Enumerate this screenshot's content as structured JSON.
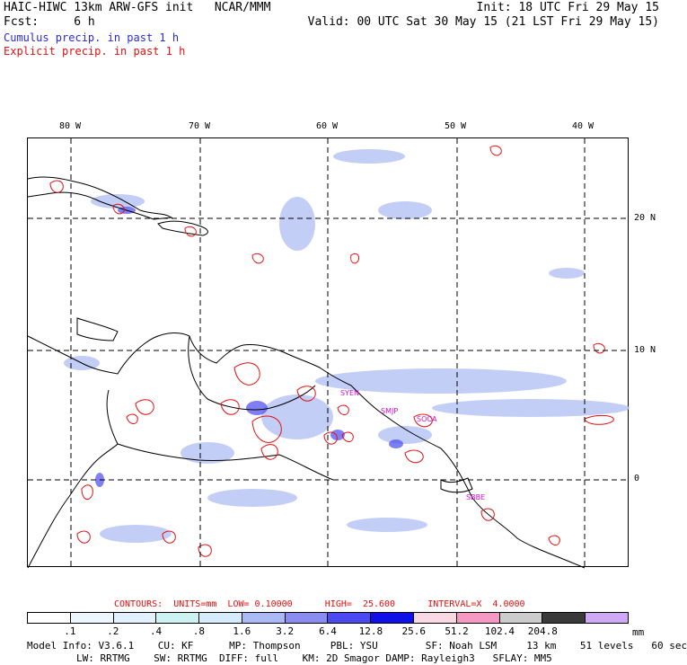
{
  "header": {
    "model": "HAIC-HIWC 13km ARW-GFS init",
    "org": "NCAR/MMM",
    "init": "Init: 18 UTC Fri 29 May 15",
    "fcst_label": "Fcst:",
    "fcst_value": "6 h",
    "valid": "Valid: 00 UTC Sat 30 May 15 (21 LST Fri 29 May 15)",
    "cumulus": "Cumulus precip. in past 1 h",
    "explicit": "Explicit precip. in past 1 h"
  },
  "map": {
    "lon_labels": [
      "80 W",
      "70 W",
      "60 W",
      "50 W",
      "40 W"
    ],
    "lat_labels": [
      "20 N",
      "10 N",
      "0"
    ],
    "stations": [
      "SYEN",
      "SMJP",
      "SOCA",
      "SBBE"
    ]
  },
  "contours_line": "CONTOURS:  UNITS=mm  LOW= 0.10000      HIGH=  25.600      INTERVAL=X  4.0000",
  "colorbar": {
    "colors": [
      "#ffffff",
      "#eef6ff",
      "#e2f0ff",
      "#ccf2f2",
      "#d4ecfb",
      "#aabaf8",
      "#8a8cf2",
      "#4a4af0",
      "#1010e8",
      "#f8d8e2",
      "#f598c2",
      "#cccccc",
      "#3a3a3a",
      "#d0a8f8"
    ],
    "ticks": [
      ".1",
      ".2",
      ".4",
      ".8",
      "1.6",
      "3.2",
      "6.4",
      "12.8",
      "25.6",
      "51.2",
      "102.4",
      "204.8"
    ],
    "unit": "mm"
  },
  "model_info": {
    "line1": "Model Info: V3.6.1    CU: KF      MP: Thompson     PBL: YSU        SF: Noah LSM     13 km    51 levels   60 sec",
    "line2": "LW: RRTMG    SW: RRTMG  DIFF: full    KM: 2D Smagor DAMP: Rayleigh3   SFLAY: MM5"
  }
}
